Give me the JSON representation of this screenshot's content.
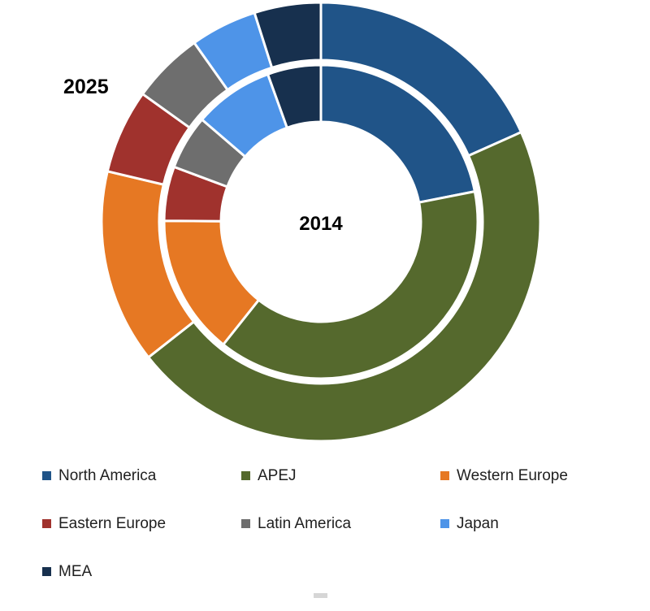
{
  "chart": {
    "outer_ring_label": "2025",
    "inner_ring_label": "2014"
  },
  "chart_data": {
    "type": "donut",
    "subtype": "two-ring-market-share",
    "categories": [
      "North America",
      "APEJ",
      "Western Europe",
      "Eastern Europe",
      "Latin America",
      "Japan",
      "MEA"
    ],
    "colors": [
      "#205488",
      "#55692D",
      "#E67823",
      "#A0322D",
      "#6E6E6E",
      "#4E94E8",
      "#17304E"
    ],
    "rings": [
      {
        "name": "2014",
        "position": "inner",
        "unit": "percent",
        "values": [
          21.9,
          38.8,
          14.4,
          5.6,
          5.6,
          8.2,
          5.5
        ]
      },
      {
        "name": "2025",
        "position": "outer",
        "unit": "percent",
        "values": [
          18.3,
          46.1,
          14.3,
          6.2,
          5.3,
          4.9,
          4.9
        ]
      }
    ],
    "start_angle_deg": 0,
    "direction": "clockwise",
    "segment_border_color": "#ffffff",
    "legend_position": "bottom-left",
    "title": ""
  },
  "legend": {
    "items": [
      {
        "label": "North America",
        "color": "#205488"
      },
      {
        "label": "APEJ",
        "color": "#55692D"
      },
      {
        "label": "Western Europe",
        "color": "#E67823"
      },
      {
        "label": "Eastern Europe",
        "color": "#A0322D"
      },
      {
        "label": "Latin America",
        "color": "#6E6E6E"
      },
      {
        "label": "Japan",
        "color": "#4E94E8"
      },
      {
        "label": "MEA",
        "color": "#17304E"
      }
    ]
  }
}
